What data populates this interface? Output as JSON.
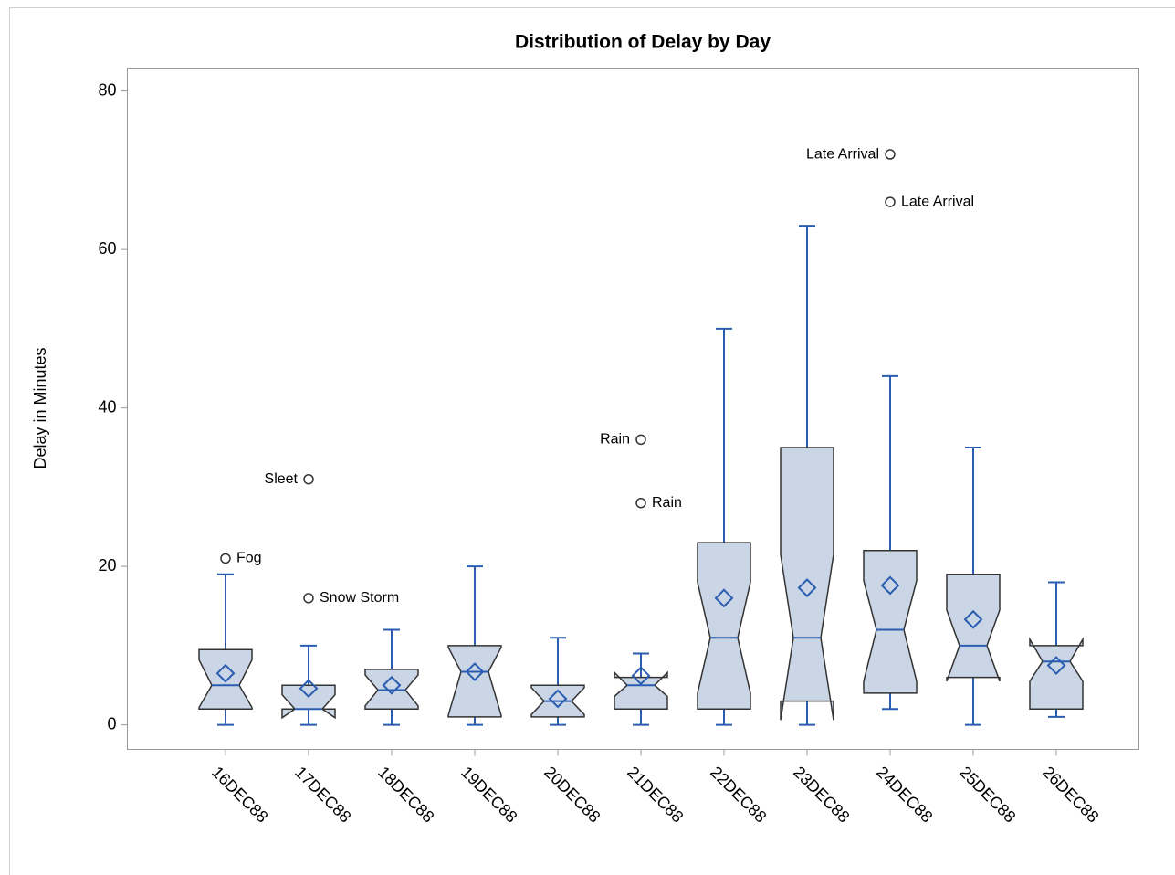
{
  "chart_data": {
    "type": "box",
    "title": "Distribution of Delay by Day",
    "y_label": "Delay in Minutes",
    "categories": [
      "16DEC88",
      "17DEC88",
      "18DEC88",
      "19DEC88",
      "20DEC88",
      "21DEC88",
      "22DEC88",
      "23DEC88",
      "24DEC88",
      "25DEC88",
      "26DEC88"
    ],
    "boxes": [
      {
        "min": 0,
        "q1": 2,
        "median": 5,
        "q3": 9.5,
        "max": 19,
        "mean": 6.5,
        "notch_low": 2.2,
        "notch_high": 8.2,
        "outliers": [
          {
            "value": 21,
            "label": "Fog"
          }
        ]
      },
      {
        "min": 0,
        "q1": 2,
        "median": 2,
        "q3": 5,
        "max": 10,
        "mean": 4.6,
        "notch_low": 0.9,
        "notch_high": 3.8,
        "outliers": [
          {
            "value": 31,
            "label": "Sleet"
          },
          {
            "value": 16,
            "label": "Snow Storm"
          }
        ]
      },
      {
        "min": 0,
        "q1": 2,
        "median": 4.4,
        "q3": 7,
        "max": 12,
        "mean": 5,
        "notch_low": 2.4,
        "notch_high": 6.3,
        "outliers": []
      },
      {
        "min": 0,
        "q1": 1,
        "median": 6.7,
        "q3": 10,
        "max": 20,
        "mean": 6.7,
        "notch_low": 1.2,
        "notch_high": 9.8,
        "outliers": []
      },
      {
        "min": 0,
        "q1": 1,
        "median": 3,
        "q3": 5,
        "max": 11,
        "mean": 3.3,
        "notch_low": 1.3,
        "notch_high": 4.7,
        "outliers": []
      },
      {
        "min": 0,
        "q1": 2,
        "median": 5,
        "q3": 6,
        "max": 9,
        "mean": 6.2,
        "notch_low": 3.6,
        "notch_high": 6.6,
        "outliers": [
          {
            "value": 36,
            "label": "Rain"
          },
          {
            "value": 28,
            "label": "Rain"
          }
        ]
      },
      {
        "min": 0,
        "q1": 2,
        "median": 11,
        "q3": 23,
        "max": 50,
        "mean": 16,
        "notch_low": 4,
        "notch_high": 18,
        "outliers": []
      },
      {
        "min": 0,
        "q1": 3,
        "median": 11,
        "q3": 35,
        "max": 63,
        "mean": 17.3,
        "notch_low": 0.6,
        "notch_high": 21.5,
        "outliers": []
      },
      {
        "min": 2,
        "q1": 4,
        "median": 12,
        "q3": 22,
        "max": 44,
        "mean": 17.6,
        "notch_low": 5.5,
        "notch_high": 18.2,
        "outliers": [
          {
            "value": 72,
            "label": "Late Arrival"
          },
          {
            "value": 66,
            "label": "Late Arrival"
          }
        ]
      },
      {
        "min": 0,
        "q1": 6,
        "median": 10,
        "q3": 19,
        "max": 35,
        "mean": 13.3,
        "notch_low": 5.5,
        "notch_high": 14.5,
        "outliers": []
      },
      {
        "min": 1,
        "q1": 2,
        "median": 8,
        "q3": 10,
        "max": 18,
        "mean": 7.5,
        "notch_low": 5.5,
        "notch_high": 10.8,
        "outliers": []
      }
    ],
    "box_fill": "#cad5e6",
    "box_stroke": "#333333",
    "whisker_color": "#2a5db0",
    "mean_color": "#2a5db0",
    "ylim": [
      -3.1,
      82.9
    ],
    "yticks": [
      0,
      20,
      40,
      60,
      80
    ]
  }
}
